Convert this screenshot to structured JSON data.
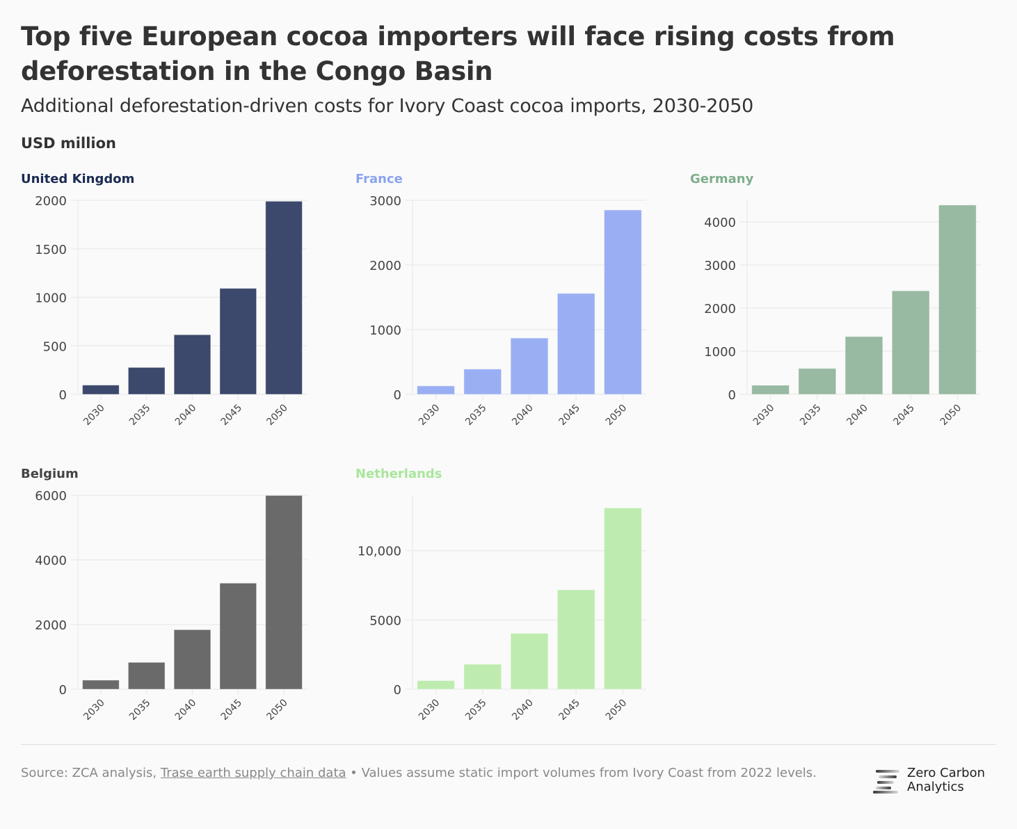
{
  "header": {
    "title": "Top five European cocoa importers will face rising costs from deforestation in the Congo Basin",
    "subtitle": "Additional deforestation-driven costs for Ivory Coast cocoa imports, 2030-2050",
    "unit_label": "USD million"
  },
  "footer": {
    "source_prefix": "Source: ZCA analysis, ",
    "source_link": "Trase earth supply chain data",
    "note": " • Values assume static import volumes from Ivory Coast from 2022 levels."
  },
  "logo": {
    "line1": "Zero Carbon",
    "line2": "Analytics",
    "icon": "zca-logo-icon"
  },
  "chart_data": [
    {
      "type": "bar",
      "title": "United Kingdom",
      "color": "#2b3a5f",
      "title_color": "#1b2a52",
      "categories": [
        "2030",
        "2035",
        "2040",
        "2045",
        "2050"
      ],
      "values": [
        95,
        277,
        614,
        1092,
        1990
      ],
      "ylim": [
        0,
        2000
      ],
      "yticks": [
        0,
        500,
        1000,
        1500,
        2000
      ],
      "ytick_labels": [
        "0",
        "500",
        "1000",
        "1500",
        "2000"
      ],
      "xlabel": "",
      "ylabel": "USD million",
      "grid": true
    },
    {
      "type": "bar",
      "title": "France",
      "color": "#91a8f2",
      "title_color": "#8aa3f0",
      "categories": [
        "2030",
        "2035",
        "2040",
        "2045",
        "2050"
      ],
      "values": [
        130,
        390,
        870,
        1560,
        2850
      ],
      "ylim": [
        0,
        3000
      ],
      "yticks": [
        0,
        1000,
        2000,
        3000
      ],
      "ytick_labels": [
        "0",
        "1000",
        "2000",
        "3000"
      ],
      "xlabel": "",
      "ylabel": "USD million",
      "grid": true
    },
    {
      "type": "bar",
      "title": "Germany",
      "color": "#8fb39a",
      "title_color": "#7fae8c",
      "categories": [
        "2030",
        "2035",
        "2040",
        "2045",
        "2050"
      ],
      "values": [
        210,
        600,
        1340,
        2400,
        4390
      ],
      "ylim": [
        0,
        4500
      ],
      "yticks": [
        0,
        1000,
        2000,
        3000,
        4000
      ],
      "ytick_labels": [
        "0",
        "1000",
        "2000",
        "3000",
        "4000"
      ],
      "xlabel": "",
      "ylabel": "USD million",
      "grid": true
    },
    {
      "type": "bar",
      "title": "Belgium",
      "color": "#5d5d5d",
      "title_color": "#444444",
      "categories": [
        "2030",
        "2035",
        "2040",
        "2045",
        "2050"
      ],
      "values": [
        280,
        830,
        1840,
        3280,
        5990
      ],
      "ylim": [
        0,
        6000
      ],
      "yticks": [
        0,
        2000,
        4000,
        6000
      ],
      "ytick_labels": [
        "0",
        "2000",
        "4000",
        "6000"
      ],
      "xlabel": "",
      "ylabel": "USD million",
      "grid": true
    },
    {
      "type": "bar",
      "title": "Netherlands",
      "color": "#b8eaa8",
      "title_color": "#a9e69b",
      "categories": [
        "2030",
        "2035",
        "2040",
        "2045",
        "2050"
      ],
      "values": [
        620,
        1800,
        4030,
        7170,
        13080
      ],
      "ylim": [
        0,
        14000
      ],
      "yticks": [
        0,
        5000,
        10000
      ],
      "ytick_labels": [
        "0",
        "5000",
        "10,000"
      ],
      "xlabel": "",
      "ylabel": "USD million",
      "grid": true
    }
  ]
}
